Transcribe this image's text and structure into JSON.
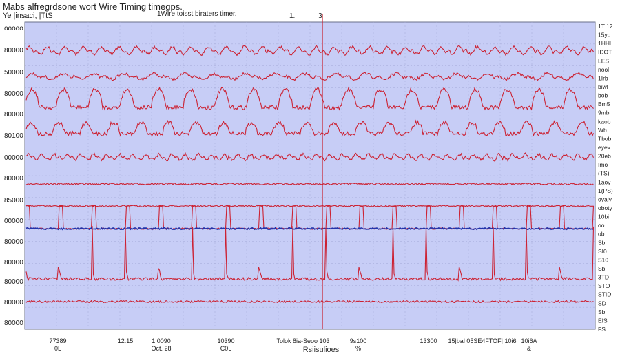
{
  "header": {
    "title": "Mabs alfregrdsone wort Wire Timing timegps.",
    "subtitle": "Ye |insaci, |TtS",
    "center_label": "1Wire toisst biraters timer.",
    "cursor_label": "1.",
    "cursor_value": "3"
  },
  "chart_data": {
    "type": "line",
    "title": "Mabs alfregrdsone wort Wire Timing timegps.",
    "xlabel": "Rsiisulioes",
    "ylabel": "",
    "grid": true,
    "plot_background": "#c7cdf6",
    "trace_color": "#cc2233",
    "accent_color": "#2233aa",
    "y_tick_labels": [
      "ooooo",
      "80000",
      "50000",
      "80000",
      "80000",
      "80100",
      "00000",
      "80000",
      "85000",
      "00000",
      "80000",
      "80000",
      "80000",
      "80000",
      "80000",
      "80000",
      "80000"
    ],
    "x_tick_labels": [
      "77389",
      "12:15",
      "1:0090",
      "10390",
      "Tolok 8ia-Seoo 103",
      "9s100",
      "13300",
      "15|bal 05SE4FTOF| 10i6",
      "10i6A"
    ],
    "x_sub_labels": [
      {
        "at": 0,
        "text": "0L"
      },
      {
        "at": 2,
        "text": "Oct. 28"
      },
      {
        "at": 3,
        "text": "C0L"
      },
      {
        "at": 5,
        "text": "%"
      },
      {
        "at": 8,
        "text": "&"
      }
    ],
    "right_labels": [
      "1T 12",
      "15yd",
      "1HHl",
      "IDOT",
      "LES",
      "nool",
      "1Irb",
      "biwl",
      "bob",
      "Bm5",
      "9mb",
      "kaob",
      "Wb",
      "Tbob",
      "eyev",
      "20eb",
      "Imo",
      "(TS)",
      "1aoy",
      "1(PS)",
      "oyaly",
      "oboty",
      "10bi",
      "oo",
      "ob",
      "Sb",
      "SI0",
      "S10",
      "Sb",
      "3TD",
      "STO",
      "STID",
      "SD",
      "Sb",
      "EIS",
      "FS"
    ],
    "series": [
      {
        "shape": "spiky",
        "baseline": 76,
        "amplitude": 8,
        "period": 26,
        "noise": 2
      },
      {
        "shape": "spiky",
        "baseline": 113,
        "amplitude": 6,
        "period": 44,
        "noise": 2
      },
      {
        "shape": "hump",
        "baseline": 156,
        "amplitude": 26,
        "period": 46,
        "noise": 3
      },
      {
        "shape": "hump",
        "baseline": 194,
        "amplitude": 16,
        "period": 40,
        "noise": 3
      },
      {
        "shape": "spiky",
        "baseline": 230,
        "amplitude": 6,
        "period": 19,
        "noise": 2
      },
      {
        "shape": "flat",
        "baseline": 267,
        "amplitude": 0,
        "period": 0,
        "noise": 1.2
      },
      {
        "shape": "flat",
        "baseline": 299,
        "amplitude": 0,
        "period": 0,
        "noise": 1
      },
      {
        "shape": "pulse-top",
        "baseline": 332,
        "amplitude": 33,
        "period": 48.5,
        "noise": 1
      },
      {
        "shape": "flat",
        "baseline": 332,
        "amplitude": 0,
        "period": 0,
        "noise": 1.2,
        "accent": true
      },
      {
        "shape": "pulse-bottom",
        "baseline": 405,
        "amplitude": 75,
        "period": 48.5,
        "noise": 2
      },
      {
        "shape": "flat",
        "baseline": 438,
        "amplitude": 0,
        "period": 0,
        "noise": 1.5
      }
    ],
    "cursor_x": 468
  }
}
